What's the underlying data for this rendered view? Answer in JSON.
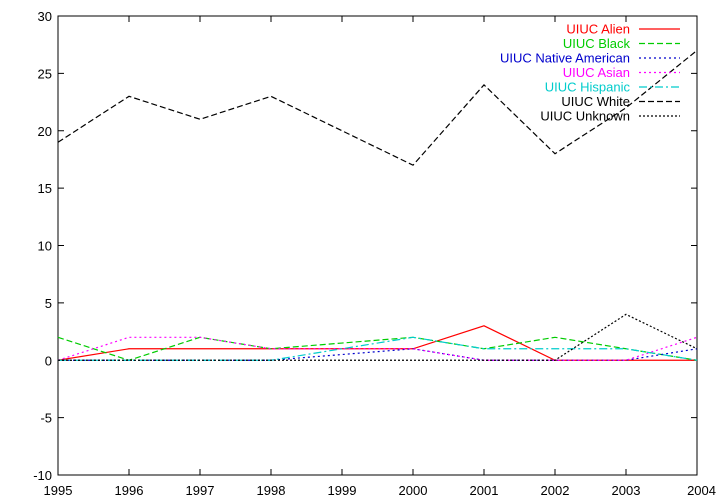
{
  "chart_data": {
    "type": "line",
    "title": "",
    "xlabel": "",
    "ylabel": "",
    "x": [
      1995,
      1996,
      1997,
      1998,
      1999,
      2000,
      2001,
      2002,
      2003,
      2004
    ],
    "xlim": [
      1995,
      2004
    ],
    "ylim": [
      -10,
      30
    ],
    "xticks": [
      1995,
      1996,
      1997,
      1998,
      1999,
      2000,
      2001,
      2002,
      2003,
      2004
    ],
    "yticks": [
      -10,
      -5,
      0,
      5,
      10,
      15,
      20,
      25,
      30
    ],
    "grid": false,
    "legend_position": "top-right",
    "series": [
      {
        "name": "UIUC Alien",
        "color": "#ff0000",
        "dash": "solid",
        "values": [
          0,
          1,
          1,
          1,
          1,
          1,
          3,
          0,
          0,
          0
        ]
      },
      {
        "name": "UIUC Black",
        "color": "#00cc00",
        "dash": "dashed",
        "values": [
          2,
          0,
          2,
          1,
          1.5,
          2,
          1,
          2,
          1,
          0
        ]
      },
      {
        "name": "UIUC Native American",
        "color": "#0000cc",
        "dash": "dotted",
        "values": [
          0,
          0,
          0,
          0,
          0.5,
          1,
          0,
          0,
          0,
          1
        ]
      },
      {
        "name": "UIUC Asian",
        "color": "#ff00ff",
        "dash": "dotted",
        "values": [
          0,
          2,
          2,
          1,
          1,
          1,
          0,
          0,
          0,
          2
        ]
      },
      {
        "name": "UIUC Hispanic",
        "color": "#00cccc",
        "dash": "dashdot",
        "values": [
          0,
          0,
          0,
          0,
          1,
          2,
          1,
          1,
          1,
          0
        ]
      },
      {
        "name": "UIUC White",
        "color": "#000000",
        "dash": "dashed",
        "values": [
          19,
          23,
          21,
          23,
          20,
          17,
          24,
          18,
          22,
          27
        ]
      },
      {
        "name": "UIUC Unknown",
        "color": "#000000",
        "dash": "densedotted",
        "values": [
          0,
          0,
          0,
          0,
          0,
          0,
          0,
          0,
          4,
          1
        ]
      }
    ]
  }
}
